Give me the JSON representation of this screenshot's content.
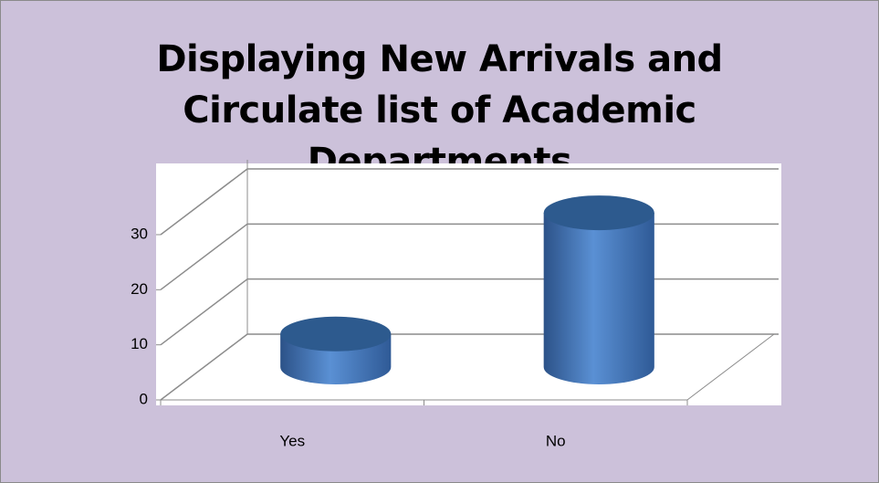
{
  "chart_data": {
    "type": "bar3d",
    "title": "Displaying New Arrivals and Circulate list of Academic Departments",
    "categories": [
      "Yes",
      "No"
    ],
    "values": [
      6,
      28
    ],
    "color": "#4f81bd",
    "ylim": [
      0,
      30
    ],
    "yticks": [
      0,
      10,
      20,
      30
    ],
    "grid": true
  }
}
